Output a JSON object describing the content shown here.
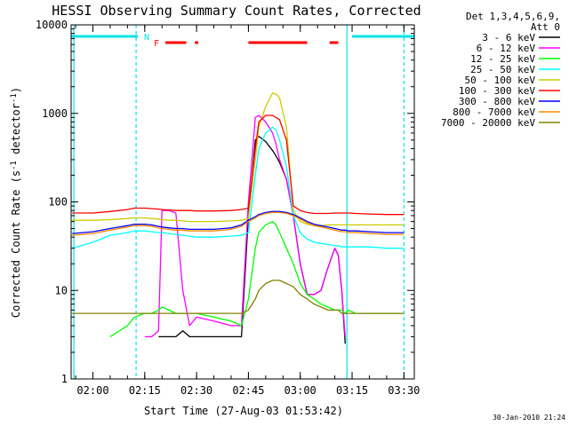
{
  "chart_data": {
    "type": "line",
    "title": "HESSI Observing Summary Count Rates, Corrected",
    "xlabel": "Start Time (27-Aug-03 01:53:42)",
    "ylabel": "Corrected Count Rate (s⁻¹ detector⁻¹)",
    "ylabel_parts": [
      "Corrected Count Rate (s",
      "-1",
      " detector",
      "-1",
      ")"
    ],
    "y_scale": "log",
    "ylim": [
      1,
      10000
    ],
    "xlim": [
      "01:53:42",
      "03:33:00"
    ],
    "x_ticks": [
      "02:00",
      "02:15",
      "02:30",
      "02:45",
      "03:00",
      "03:15",
      "03:30"
    ],
    "y_ticks": [
      "1",
      "10",
      "100",
      "1000",
      "10000"
    ],
    "legend_header": [
      "Det 1,3,4,5,6,9,",
      "Att 0"
    ],
    "legend_position": "right",
    "grid": false,
    "flags": [
      {
        "label": "N",
        "color": "#00e5e5",
        "segments": [
          [
            "01:53:42",
            "02:13:00"
          ],
          [
            "03:15:00",
            "03:33:00"
          ]
        ]
      },
      {
        "label": "F",
        "color": "#ff0000",
        "segments": [
          [
            "02:21:00",
            "02:27:00"
          ],
          [
            "02:29:30",
            "02:30:30"
          ],
          [
            "02:45:00",
            "03:02:00"
          ],
          [
            "03:08:30",
            "03:11:00"
          ]
        ]
      }
    ],
    "markers": [
      {
        "time": "01:54:30",
        "style": "solid",
        "color": "#00e5e5"
      },
      {
        "time": "02:12:30",
        "style": "dashed",
        "color": "#00e5e5"
      },
      {
        "time": "03:13:30",
        "style": "solid",
        "color": "#00e5e5"
      },
      {
        "time": "03:30:00",
        "style": "dashed",
        "color": "#00e5e5"
      }
    ],
    "x": [
      "01:54",
      "02:00",
      "02:05",
      "02:10",
      "02:12",
      "02:15",
      "02:17",
      "02:19",
      "02:20",
      "02:22",
      "02:24",
      "02:26",
      "02:28",
      "02:30",
      "02:35",
      "02:40",
      "02:43",
      "02:45",
      "02:47",
      "02:48",
      "02:50",
      "02:52",
      "02:53",
      "02:54",
      "02:56",
      "02:58",
      "03:00",
      "03:02",
      "03:04",
      "03:06",
      "03:08",
      "03:10",
      "03:11",
      "03:12",
      "03:13",
      "03:14",
      "03:16",
      "03:20",
      "03:25",
      "03:30"
    ],
    "series": [
      {
        "name": "3 - 6 keV",
        "color": "#000000",
        "values": [
          null,
          null,
          null,
          null,
          null,
          null,
          null,
          3,
          3,
          3,
          3,
          3.5,
          3,
          3,
          3,
          3,
          3,
          70,
          500,
          550,
          480,
          380,
          330,
          280,
          180,
          70,
          20,
          9,
          9,
          10,
          18,
          30,
          25,
          10,
          2.5,
          null,
          null,
          null,
          null,
          null
        ]
      },
      {
        "name": "6 - 12 keV",
        "color": "#ff00ff",
        "values": [
          null,
          null,
          null,
          null,
          null,
          3,
          3,
          3.5,
          80,
          80,
          75,
          10,
          4,
          5,
          4.5,
          4,
          4,
          100,
          900,
          950,
          800,
          600,
          450,
          300,
          180,
          70,
          20,
          9,
          9,
          10,
          18,
          30,
          25,
          10,
          3,
          null,
          null,
          null,
          null,
          null
        ]
      },
      {
        "name": "12 - 25 keV",
        "color": "#00ff00",
        "values": [
          null,
          null,
          3,
          4,
          5,
          5.5,
          5.5,
          6,
          6.5,
          6,
          5.5,
          5.5,
          5.5,
          5.5,
          5,
          4.5,
          4,
          8,
          30,
          45,
          55,
          60,
          55,
          45,
          30,
          20,
          12,
          9,
          8,
          7,
          6.5,
          6,
          6,
          6,
          5.5,
          6,
          5.5,
          5.5,
          5.5,
          5.5
        ]
      },
      {
        "name": "25 - 50 keV",
        "color": "#00ffff",
        "values": [
          30,
          35,
          42,
          45,
          47,
          47,
          46,
          45,
          45,
          44,
          43,
          42,
          41,
          40,
          40,
          41,
          42,
          45,
          200,
          400,
          600,
          700,
          650,
          500,
          250,
          70,
          45,
          38,
          35,
          34,
          33,
          32,
          32,
          31,
          31,
          31,
          31,
          31,
          30,
          30
        ]
      },
      {
        "name": "50 - 100 keV",
        "color": "#cccc00",
        "values": [
          62,
          62,
          63,
          65,
          66,
          66,
          65,
          64,
          63,
          62,
          62,
          61,
          60,
          60,
          60,
          61,
          62,
          65,
          300,
          700,
          1200,
          1700,
          1650,
          1500,
          700,
          80,
          60,
          56,
          54,
          54,
          55,
          55,
          55,
          55,
          55,
          55,
          55,
          55,
          55,
          55
        ]
      },
      {
        "name": "100 - 300 keV",
        "color": "#ff0000",
        "values": [
          75,
          75,
          78,
          82,
          85,
          85,
          84,
          83,
          82,
          81,
          80,
          80,
          80,
          79,
          79,
          80,
          82,
          85,
          400,
          800,
          950,
          950,
          900,
          850,
          500,
          90,
          80,
          76,
          74,
          74,
          74,
          75,
          75,
          75,
          75,
          75,
          74,
          73,
          72,
          72
        ]
      },
      {
        "name": "300 - 800 keV",
        "color": "#0000ff",
        "values": [
          44,
          46,
          50,
          54,
          56,
          56,
          55,
          53,
          52,
          51,
          50,
          50,
          49,
          49,
          49,
          51,
          55,
          62,
          68,
          72,
          76,
          78,
          78,
          78,
          76,
          72,
          66,
          60,
          56,
          54,
          52,
          50,
          49,
          48,
          48,
          47,
          47,
          46,
          45,
          45
        ]
      },
      {
        "name": "800 - 7000 keV",
        "color": "#ff8800",
        "values": [
          42,
          44,
          48,
          52,
          54,
          54,
          53,
          51,
          50,
          49,
          48,
          48,
          47,
          47,
          47,
          49,
          53,
          60,
          66,
          70,
          74,
          76,
          76,
          76,
          74,
          70,
          64,
          58,
          54,
          52,
          50,
          48,
          47,
          46,
          46,
          45,
          45,
          44,
          43,
          43
        ]
      },
      {
        "name": "7000 - 20000 keV",
        "color": "#808000",
        "values": [
          5.5,
          5.5,
          5.5,
          5.5,
          5.5,
          5.5,
          5.5,
          5.5,
          5.5,
          5.5,
          5.5,
          5.5,
          5.5,
          5.5,
          5.5,
          5.5,
          5.5,
          6,
          8,
          10,
          12,
          13,
          13,
          13,
          12,
          11,
          9,
          8,
          7,
          6.5,
          6,
          6,
          6,
          5.5,
          5.5,
          5.5,
          5.5,
          5.5,
          5.5,
          5.5
        ]
      }
    ],
    "timestamp": "30-Jan-2010 21:24"
  }
}
